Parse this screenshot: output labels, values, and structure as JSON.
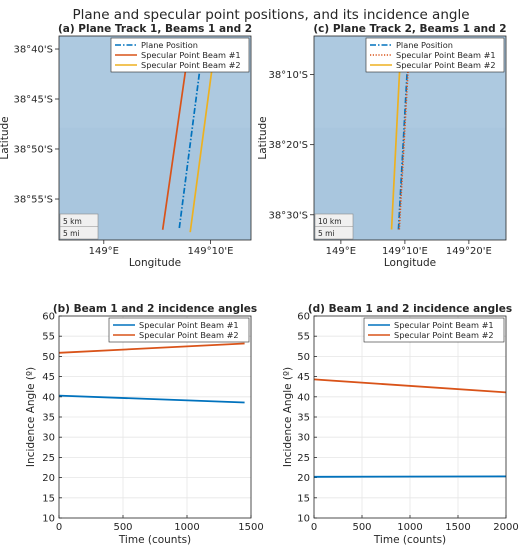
{
  "figure": {
    "title": "Plane and specular point positions, and its incidence angle"
  },
  "colors": {
    "plane": "#0072bd",
    "beam1_map": "#d95319",
    "beam2_map": "#edb120",
    "beam1_line": "#0072bd",
    "beam2_line": "#d95319",
    "map_bg": "#a9c6de",
    "grid": "#e6e6e6"
  },
  "chart_data": [
    {
      "panel": "a",
      "type": "line",
      "title": "(a) Plane Track 1, Beams 1 and 2",
      "xlabel": "Longitude",
      "ylabel": "Latitude",
      "xlim_deg": [
        148.93,
        149.23
      ],
      "ylim_deg": [
        -38.985,
        -38.645
      ],
      "xticks": [
        {
          "v": 149.0,
          "label": "149°E"
        },
        {
          "v": 149.1667,
          "label": "149°10'E"
        }
      ],
      "yticks": [
        {
          "v": -38.6667,
          "label": "38°40'S"
        },
        {
          "v": -38.75,
          "label": "38°45'S"
        },
        {
          "v": -38.8333,
          "label": "38°50'S"
        },
        {
          "v": -38.9167,
          "label": "38°55'S"
        }
      ],
      "scale": [
        "5 km",
        "5 mi"
      ],
      "legend": {
        "location": "top-right",
        "entries": [
          "Plane Position",
          "Specular Point Beam #1",
          "Specular Point Beam #2"
        ]
      },
      "series": [
        {
          "name": "Plane Position",
          "style": "dashdot",
          "color_key": "plane",
          "lon": [
            149.118,
            149.152
          ],
          "lat": [
            -38.965,
            -38.685
          ]
        },
        {
          "name": "Specular Point Beam #1",
          "style": "solid",
          "color_key": "beam1_map",
          "lon": [
            149.092,
            149.131
          ],
          "lat": [
            -38.968,
            -38.678
          ]
        },
        {
          "name": "Specular Point Beam #2",
          "style": "solid",
          "color_key": "beam2_map",
          "lon": [
            149.135,
            149.171
          ],
          "lat": [
            -38.972,
            -38.684
          ]
        }
      ]
    },
    {
      "panel": "c",
      "type": "line",
      "title": "(c) Plane Track 2, Beams 1 and 2",
      "xlabel": "Longitude",
      "ylabel": "Latitude",
      "xlim_deg": [
        148.93,
        149.43
      ],
      "ylim_deg": [
        -38.56,
        -38.075
      ],
      "xticks": [
        {
          "v": 149.0,
          "label": "149°E"
        },
        {
          "v": 149.1667,
          "label": "149°10'E"
        },
        {
          "v": 149.3333,
          "label": "149°20'E"
        }
      ],
      "yticks": [
        {
          "v": -38.1667,
          "label": "38°10'S"
        },
        {
          "v": -38.3333,
          "label": "38°20'S"
        },
        {
          "v": -38.5,
          "label": "38°30'S"
        }
      ],
      "scale": [
        "10 km",
        "5 mi"
      ],
      "legend": {
        "location": "top-right",
        "entries": [
          "Plane Position",
          "Specular Point Beam #1",
          "Specular Point Beam #2"
        ]
      },
      "series": [
        {
          "name": "Plane Position",
          "style": "dashdot",
          "color_key": "plane",
          "lon": [
            149.15,
            149.175
          ],
          "lat": [
            -38.535,
            -38.12
          ]
        },
        {
          "name": "Specular Point Beam #1",
          "style": "dotted",
          "color_key": "beam1_map",
          "lon": [
            149.152,
            149.177
          ],
          "lat": [
            -38.535,
            -38.12
          ]
        },
        {
          "name": "Specular Point Beam #2",
          "style": "solid",
          "color_key": "beam2_map",
          "lon": [
            149.132,
            149.155
          ],
          "lat": [
            -38.535,
            -38.12
          ]
        }
      ]
    },
    {
      "panel": "b",
      "type": "line",
      "title": "(b) Beam 1 and 2 incidence angles",
      "xlabel": "Time (counts)",
      "ylabel": "Incidence Angle (º)",
      "xlim": [
        0,
        1500
      ],
      "ylim": [
        10,
        60
      ],
      "xticks": [
        0,
        500,
        1000,
        1500
      ],
      "yticks": [
        10,
        15,
        20,
        25,
        30,
        35,
        40,
        45,
        50,
        55,
        60
      ],
      "grid": true,
      "legend": {
        "location": "top-right",
        "entries": [
          "Specular Point Beam #1",
          "Specular Point Beam #2"
        ]
      },
      "series": [
        {
          "name": "Specular Point Beam #1",
          "color_key": "beam1_line",
          "x": [
            0,
            1450
          ],
          "y": [
            40.3,
            38.6
          ]
        },
        {
          "name": "Specular Point Beam #2",
          "color_key": "beam2_line",
          "x": [
            0,
            1450
          ],
          "y": [
            50.9,
            53.2
          ]
        }
      ]
    },
    {
      "panel": "d",
      "type": "line",
      "title": "(d) Beam 1 and 2 incidence angles",
      "xlabel": "Time (counts)",
      "ylabel": "Incidence Angle (º)",
      "xlim": [
        0,
        2000
      ],
      "ylim": [
        10,
        60
      ],
      "xticks": [
        0,
        500,
        1000,
        1500,
        2000
      ],
      "yticks": [
        10,
        15,
        20,
        25,
        30,
        35,
        40,
        45,
        50,
        55,
        60
      ],
      "grid": true,
      "legend": {
        "location": "top-right",
        "entries": [
          "Specular Point Beam #1",
          "Specular Point Beam #2"
        ]
      },
      "series": [
        {
          "name": "Specular Point Beam #1",
          "color_key": "beam1_line",
          "x": [
            0,
            2000
          ],
          "y": [
            20.2,
            20.3
          ]
        },
        {
          "name": "Specular Point Beam #2",
          "color_key": "beam2_line",
          "x": [
            0,
            2000
          ],
          "y": [
            44.3,
            41.1
          ]
        }
      ]
    }
  ]
}
